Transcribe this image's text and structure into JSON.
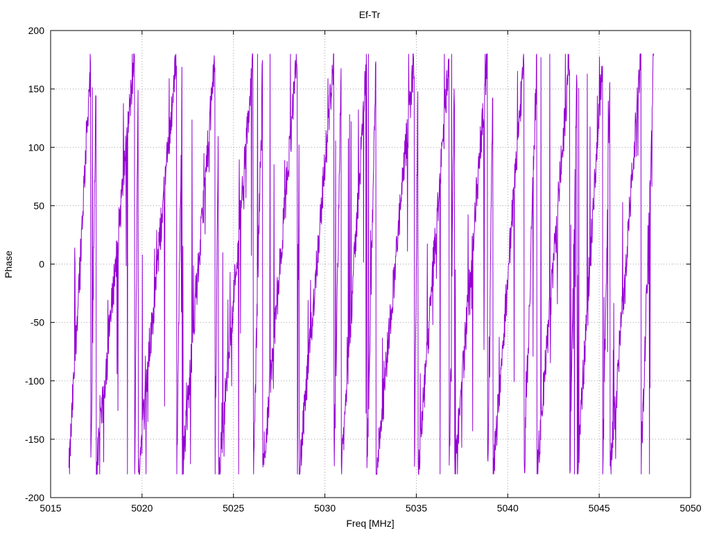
{
  "chart_data": {
    "type": "line",
    "title": "Ef-Tr",
    "xlabel": "Freq [MHz]",
    "ylabel": "Phase",
    "xlim": [
      5015,
      5050
    ],
    "ylim": [
      -200,
      200
    ],
    "x_ticks": [
      5015,
      5020,
      5025,
      5030,
      5035,
      5040,
      5045,
      5050
    ],
    "y_ticks": [
      -200,
      -150,
      -100,
      -50,
      0,
      50,
      100,
      150,
      200
    ],
    "grid": true,
    "legend": "none",
    "series": [
      {
        "color": "#9400d3",
        "x_start": 5016.0,
        "x_end": 5048.0,
        "samples_per_mhz": 60,
        "wrap_points_mhz": [
          5016.0,
          5017.2,
          5017.5,
          5019.6,
          5019.8,
          5021.9,
          5022.2,
          5024.0,
          5024.2,
          5026.1,
          5026.6,
          5028.5,
          5028.6,
          5030.5,
          5030.9,
          5032.3,
          5032.8,
          5034.9,
          5035.1,
          5036.8,
          5037.1,
          5038.9,
          5039.2,
          5040.9,
          5041.6,
          5043.4,
          5043.8,
          5045.2,
          5045.6,
          5047.3,
          5048.0
        ],
        "phase_range": [
          -180,
          180
        ],
        "noise_deg": 18
      }
    ]
  }
}
